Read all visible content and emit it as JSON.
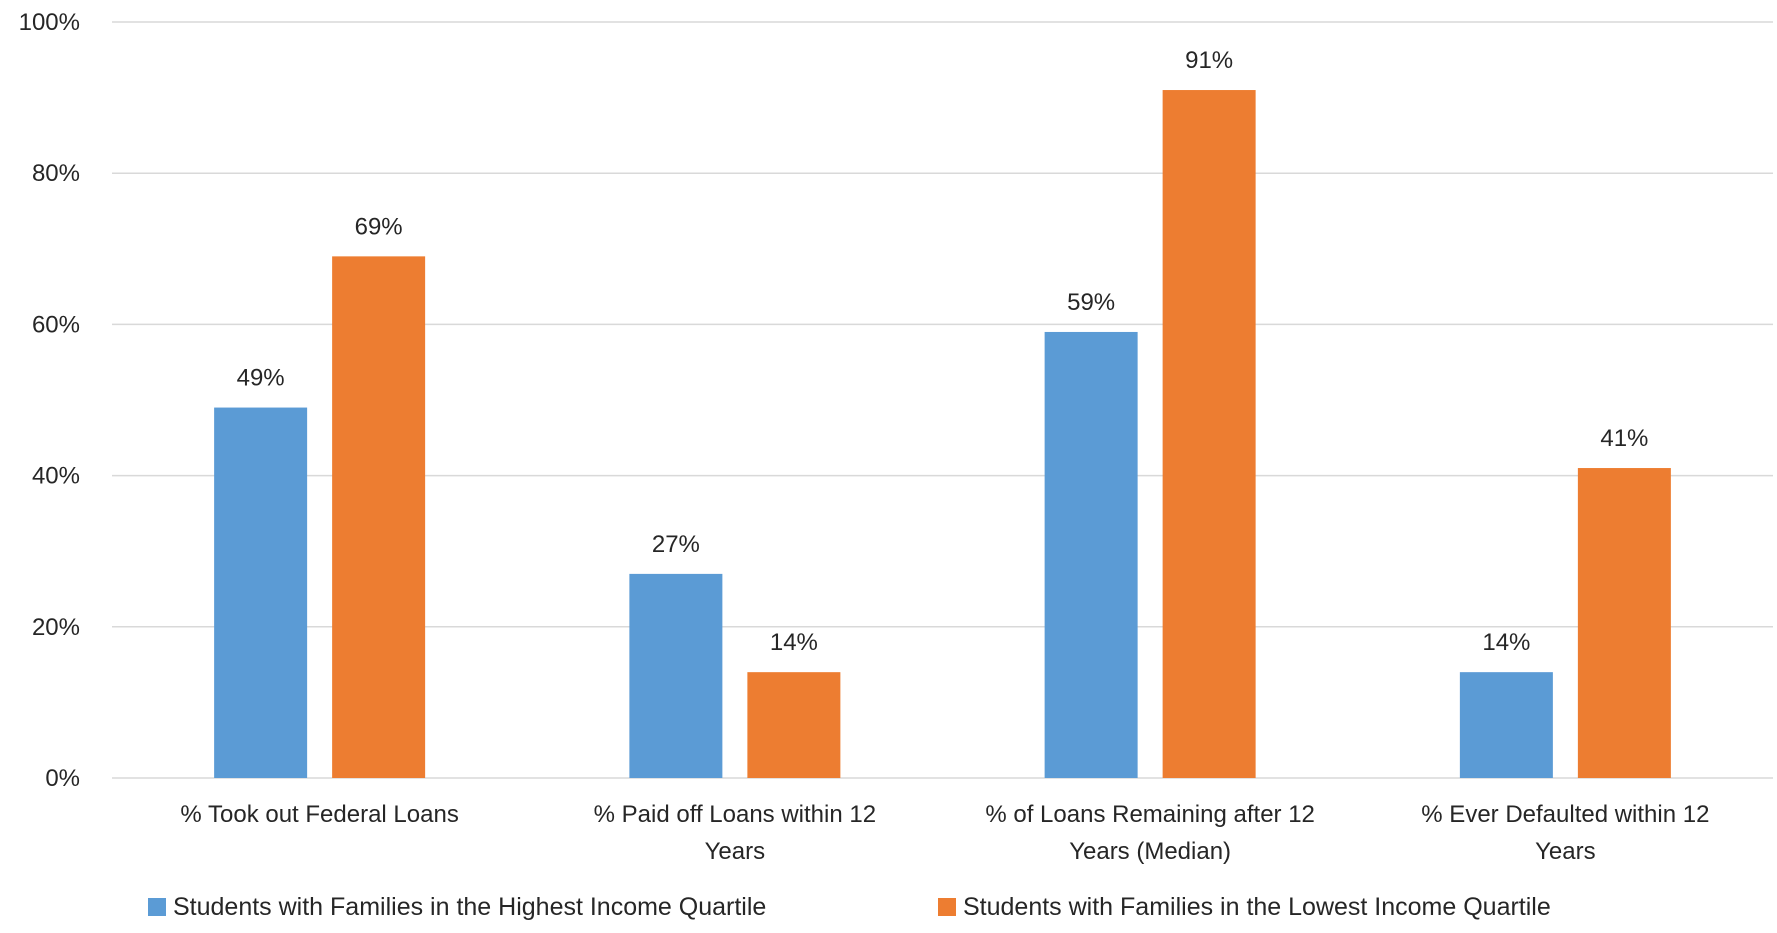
{
  "chart_data": {
    "type": "bar",
    "categories": [
      [
        "% Took out Federal Loans"
      ],
      [
        "% Paid off Loans within 12",
        "Years"
      ],
      [
        "% of Loans Remaining after 12",
        "Years (Median)"
      ],
      [
        "% Ever Defaulted within 12",
        "Years"
      ]
    ],
    "series": [
      {
        "name": "Students with Families in the Highest Income Quartile",
        "color": "#5B9BD5",
        "values": [
          49,
          27,
          59,
          14
        ],
        "labels": [
          "49%",
          "27%",
          "59%",
          "14%"
        ]
      },
      {
        "name": "Students with Families in the Lowest Income Quartile",
        "color": "#ED7D31",
        "values": [
          69,
          14,
          91,
          41
        ],
        "labels": [
          "69%",
          "14%",
          "91%",
          "41%"
        ]
      }
    ],
    "ylim": [
      0,
      100
    ],
    "yticks": [
      0,
      20,
      40,
      60,
      80,
      100
    ],
    "ytick_labels": [
      "0%",
      "20%",
      "40%",
      "60%",
      "80%",
      "100%"
    ],
    "grid": true,
    "gridline_color": "#D9D9D9",
    "legend_position": "bottom"
  }
}
